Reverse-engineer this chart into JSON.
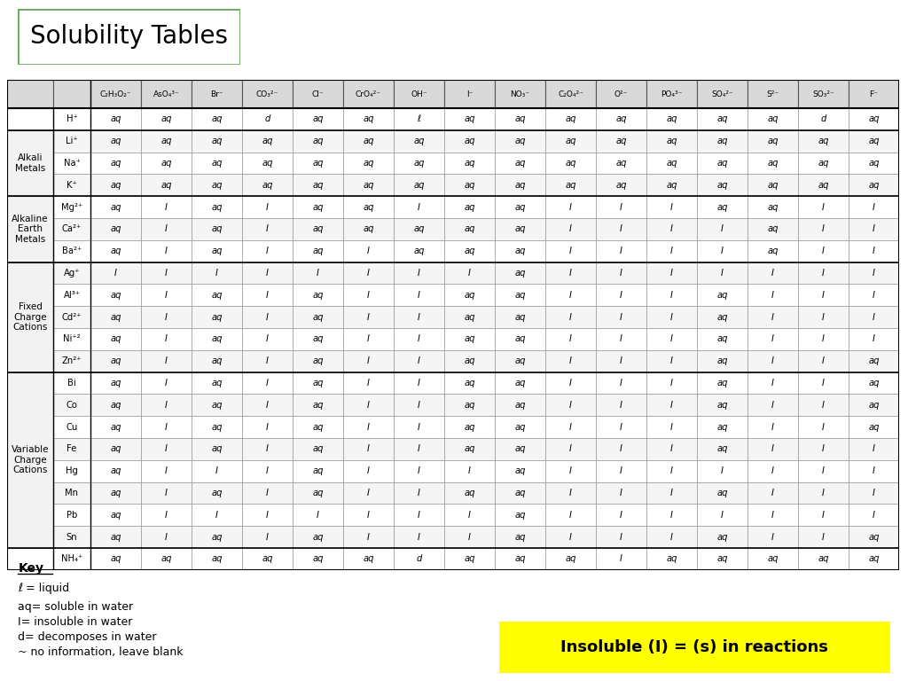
{
  "title": "Solubility Tables",
  "title_box_color": "#6aaa5f",
  "bg_color": "#ffffff",
  "col_headers": [
    "C₂H₃O₂⁻",
    "AsO₄³⁻",
    "Br⁻",
    "CO₃²⁻",
    "Cl⁻",
    "CrO₄²⁻",
    "OH⁻",
    "I⁻",
    "NO₃⁻",
    "C₂O₄²⁻",
    "O²⁻",
    "PO₄³⁻",
    "SO₄²⁻",
    "S²⁻",
    "SO₃²⁻",
    "F⁻"
  ],
  "row_groups": [
    {
      "label": "",
      "rows": [
        {
          "cation": "H⁺",
          "data": [
            "aq",
            "aq",
            "aq",
            "d",
            "aq",
            "aq",
            "ℓ",
            "aq",
            "aq",
            "aq",
            "aq",
            "aq",
            "aq",
            "aq",
            "d",
            "aq"
          ]
        }
      ]
    },
    {
      "label": "Alkali\nMetals",
      "rows": [
        {
          "cation": "Li⁺",
          "data": [
            "aq",
            "aq",
            "aq",
            "aq",
            "aq",
            "aq",
            "aq",
            "aq",
            "aq",
            "aq",
            "aq",
            "aq",
            "aq",
            "aq",
            "aq",
            "aq"
          ]
        },
        {
          "cation": "Na⁺",
          "data": [
            "aq",
            "aq",
            "aq",
            "aq",
            "aq",
            "aq",
            "aq",
            "aq",
            "aq",
            "aq",
            "aq",
            "aq",
            "aq",
            "aq",
            "aq",
            "aq"
          ]
        },
        {
          "cation": "K⁺",
          "data": [
            "aq",
            "aq",
            "aq",
            "aq",
            "aq",
            "aq",
            "aq",
            "aq",
            "aq",
            "aq",
            "aq",
            "aq",
            "aq",
            "aq",
            "aq",
            "aq"
          ]
        }
      ]
    },
    {
      "label": "Alkaline\nEarth\nMetals",
      "rows": [
        {
          "cation": "Mg²⁺",
          "data": [
            "aq",
            "I",
            "aq",
            "I",
            "aq",
            "aq",
            "I",
            "aq",
            "aq",
            "I",
            "I",
            "I",
            "aq",
            "aq",
            "I",
            "I"
          ]
        },
        {
          "cation": "Ca²⁺",
          "data": [
            "aq",
            "I",
            "aq",
            "I",
            "aq",
            "aq",
            "aq",
            "aq",
            "aq",
            "I",
            "I",
            "I",
            "I",
            "aq",
            "I",
            "I"
          ]
        },
        {
          "cation": "Ba²⁺",
          "data": [
            "aq",
            "I",
            "aq",
            "I",
            "aq",
            "I",
            "aq",
            "aq",
            "aq",
            "I",
            "I",
            "I",
            "I",
            "aq",
            "I",
            "I"
          ]
        }
      ]
    },
    {
      "label": "Fixed\nCharge\nCations",
      "rows": [
        {
          "cation": "Ag⁺",
          "data": [
            "I",
            "I",
            "I",
            "I",
            "I",
            "I",
            "I",
            "I",
            "aq",
            "I",
            "I",
            "I",
            "I",
            "I",
            "I",
            "I"
          ]
        },
        {
          "cation": "Al³⁺",
          "data": [
            "aq",
            "I",
            "aq",
            "I",
            "aq",
            "I",
            "I",
            "aq",
            "aq",
            "I",
            "I",
            "I",
            "aq",
            "I",
            "I",
            "I"
          ]
        },
        {
          "cation": "Cd²⁺",
          "data": [
            "aq",
            "I",
            "aq",
            "I",
            "aq",
            "I",
            "I",
            "aq",
            "aq",
            "I",
            "I",
            "I",
            "aq",
            "I",
            "I",
            "I"
          ]
        },
        {
          "cation": "Ni⁺²",
          "data": [
            "aq",
            "I",
            "aq",
            "I",
            "aq",
            "I",
            "I",
            "aq",
            "aq",
            "I",
            "I",
            "I",
            "aq",
            "I",
            "I",
            "I"
          ]
        },
        {
          "cation": "Zn²⁺",
          "data": [
            "aq",
            "I",
            "aq",
            "I",
            "aq",
            "I",
            "I",
            "aq",
            "aq",
            "I",
            "I",
            "I",
            "aq",
            "I",
            "I",
            "aq"
          ]
        }
      ]
    },
    {
      "label": "Variable\nCharge\nCations",
      "rows": [
        {
          "cation": "Bi",
          "data": [
            "aq",
            "I",
            "aq",
            "I",
            "aq",
            "I",
            "I",
            "aq",
            "aq",
            "I",
            "I",
            "I",
            "aq",
            "I",
            "I",
            "aq"
          ]
        },
        {
          "cation": "Co",
          "data": [
            "aq",
            "I",
            "aq",
            "I",
            "aq",
            "I",
            "I",
            "aq",
            "aq",
            "I",
            "I",
            "I",
            "aq",
            "I",
            "I",
            "aq"
          ]
        },
        {
          "cation": "Cu",
          "data": [
            "aq",
            "I",
            "aq",
            "I",
            "aq",
            "I",
            "I",
            "aq",
            "aq",
            "I",
            "I",
            "I",
            "aq",
            "I",
            "I",
            "aq"
          ]
        },
        {
          "cation": "Fe",
          "data": [
            "aq",
            "I",
            "aq",
            "I",
            "aq",
            "I",
            "I",
            "aq",
            "aq",
            "I",
            "I",
            "I",
            "aq",
            "I",
            "I",
            "I"
          ]
        },
        {
          "cation": "Hg",
          "data": [
            "aq",
            "I",
            "I",
            "I",
            "aq",
            "I",
            "I",
            "I",
            "aq",
            "I",
            "I",
            "I",
            "I",
            "I",
            "I",
            "I"
          ]
        },
        {
          "cation": "Mn",
          "data": [
            "aq",
            "I",
            "aq",
            "I",
            "aq",
            "I",
            "I",
            "aq",
            "aq",
            "I",
            "I",
            "I",
            "aq",
            "I",
            "I",
            "I"
          ]
        },
        {
          "cation": "Pb",
          "data": [
            "aq",
            "I",
            "I",
            "I",
            "I",
            "I",
            "I",
            "I",
            "aq",
            "I",
            "I",
            "I",
            "I",
            "I",
            "I",
            "I"
          ]
        },
        {
          "cation": "Sn",
          "data": [
            "aq",
            "I",
            "aq",
            "I",
            "aq",
            "I",
            "I",
            "I",
            "aq",
            "I",
            "I",
            "I",
            "aq",
            "I",
            "I",
            "aq"
          ]
        }
      ]
    },
    {
      "label": "",
      "rows": [
        {
          "cation": "NH₄⁺",
          "data": [
            "aq",
            "aq",
            "aq",
            "aq",
            "aq",
            "aq",
            "d",
            "aq",
            "aq",
            "aq",
            "I",
            "aq",
            "aq",
            "aq",
            "aq",
            "aq"
          ]
        }
      ]
    }
  ],
  "key_title": "Key",
  "key_lines": [
    "ℓ = liquid",
    "aq= soluble in water",
    "I= insoluble in water",
    "d= decomposes in water",
    "~ no information, leave blank"
  ],
  "note_text": "Insoluble (I) = (s) in reactions",
  "note_bg": "#ffff00",
  "header_bg": "#d9d9d9",
  "group_label_bg": "#f2f2f2",
  "row_bg_even": "#ffffff",
  "row_bg_odd": "#f5f5f5",
  "cell_font_size": 7.5,
  "header_font_size": 7.5
}
